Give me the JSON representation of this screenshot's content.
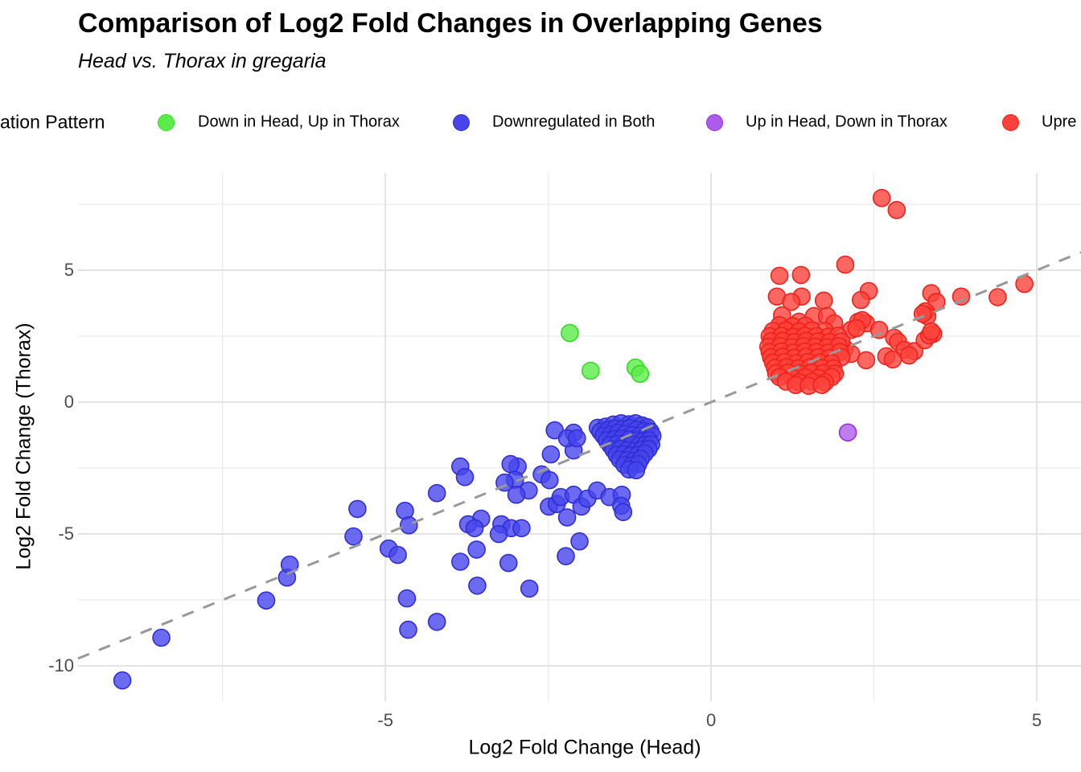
{
  "title": "Comparison of Log2 Fold Changes in Overlapping Genes",
  "subtitle": "Head vs. Thorax in gregaria",
  "legend": {
    "title": "ation Pattern",
    "items": [
      {
        "label": "Down in Head, Up in Thorax",
        "fill": "#5BEB4A",
        "stroke": "#34DC21"
      },
      {
        "label": "Downregulated in Both",
        "fill": "#4645EC",
        "stroke": "#2F2FD4"
      },
      {
        "label": "Up in Head, Down in Thorax",
        "fill": "#AE5BEB",
        "stroke": "#9432DA"
      },
      {
        "label": "Upre",
        "fill": "#FA423B",
        "stroke": "#F2201B"
      }
    ]
  },
  "axes": {
    "x": {
      "title": "Log2 Fold Change (Head)"
    },
    "y": {
      "title": "Log2 Fold Change (Thorax)"
    }
  },
  "colors": {
    "grid_major": "#E3E3E3",
    "grid_minor": "#EDEDED",
    "identity_line": "#999999",
    "tick_text": "#4d4d4d"
  },
  "chart_data": {
    "type": "scatter",
    "title": "Comparison of Log2 Fold Changes in Overlapping Genes",
    "subtitle": "Head vs. Thorax in gregaria",
    "xlabel": "Log2 Fold Change (Head)",
    "ylabel": "Log2 Fold Change (Thorax)",
    "xlim": [
      -9.72,
      5.68
    ],
    "ylim": [
      -11.34,
      8.69
    ],
    "x_major_ticks": [
      -5,
      0,
      5
    ],
    "x_minor_ticks": [
      -7.5,
      -2.5,
      2.5
    ],
    "y_major_ticks": [
      5,
      0,
      -5,
      -10
    ],
    "y_minor_ticks": [
      7.5,
      2.5,
      -2.5,
      -7.5
    ],
    "grid": true,
    "legend_position": "top",
    "identity_line": {
      "style": "dashed",
      "from": [
        -9.72,
        -9.72
      ],
      "to": [
        5.68,
        5.68
      ]
    },
    "series": [
      {
        "name": "Down in Head, Up in Thorax",
        "fill": "#5BEB4A",
        "stroke": "#34DC21",
        "points": [
          [
            -2.17,
            2.62
          ],
          [
            -1.85,
            1.19
          ],
          [
            -1.16,
            1.31
          ],
          [
            -1.09,
            1.07
          ]
        ]
      },
      {
        "name": "Downregulated in Both",
        "fill": "#4645EC",
        "stroke": "#2F2FD4",
        "points": [
          [
            -9.04,
            -10.55
          ],
          [
            -8.44,
            -8.93
          ],
          [
            -6.83,
            -7.52
          ],
          [
            -6.51,
            -6.65
          ],
          [
            -6.47,
            -6.16
          ],
          [
            -5.49,
            -5.09
          ],
          [
            -5.43,
            -4.05
          ],
          [
            -4.95,
            -5.55
          ],
          [
            -4.81,
            -5.79
          ],
          [
            -4.7,
            -4.12
          ],
          [
            -4.64,
            -4.67
          ],
          [
            -4.67,
            -7.44
          ],
          [
            -4.65,
            -8.63
          ],
          [
            -4.21,
            -8.33
          ],
          [
            -4.21,
            -3.45
          ],
          [
            -3.85,
            -2.44
          ],
          [
            -3.78,
            -2.84
          ],
          [
            -3.6,
            -5.59
          ],
          [
            -3.85,
            -6.05
          ],
          [
            -3.59,
            -6.96
          ],
          [
            -3.11,
            -6.1
          ],
          [
            -2.79,
            -7.07
          ],
          [
            -2.23,
            -5.84
          ],
          [
            -2.02,
            -5.28
          ],
          [
            -3.53,
            -4.42
          ],
          [
            -3.73,
            -4.63
          ],
          [
            -3.63,
            -4.78
          ],
          [
            -3.22,
            -4.63
          ],
          [
            -3.07,
            -4.78
          ],
          [
            -2.91,
            -4.78
          ],
          [
            -3.26,
            -5.0
          ],
          [
            -2.97,
            -2.44
          ],
          [
            -3.08,
            -2.35
          ],
          [
            -3.01,
            -2.95
          ],
          [
            -3.17,
            -3.05
          ],
          [
            -2.8,
            -3.35
          ],
          [
            -2.99,
            -3.51
          ],
          [
            -2.6,
            -2.74
          ],
          [
            -2.48,
            -2.96
          ],
          [
            -2.49,
            -3.96
          ],
          [
            -2.37,
            -3.86
          ],
          [
            -2.31,
            -3.6
          ],
          [
            -2.21,
            -4.37
          ],
          [
            -2.11,
            -3.51
          ],
          [
            -1.99,
            -3.96
          ],
          [
            -1.9,
            -3.66
          ],
          [
            -1.75,
            -3.35
          ],
          [
            -1.56,
            -3.6
          ],
          [
            -1.37,
            -3.51
          ],
          [
            -1.38,
            -3.93
          ],
          [
            -1.35,
            -4.17
          ],
          [
            -2.46,
            -1.98
          ],
          [
            -2.4,
            -1.07
          ],
          [
            -2.11,
            -1.16
          ],
          [
            -2.11,
            -1.83
          ],
          [
            -2.21,
            -1.37
          ],
          [
            -2.06,
            -1.37
          ],
          [
            -1.74,
            -0.97
          ],
          [
            -1.62,
            -0.93
          ],
          [
            -1.5,
            -0.85
          ],
          [
            -1.38,
            -0.8
          ],
          [
            -1.26,
            -0.84
          ],
          [
            -1.16,
            -0.8
          ],
          [
            -1.06,
            -0.88
          ],
          [
            -0.98,
            -0.95
          ],
          [
            -1.7,
            -1.12
          ],
          [
            -1.58,
            -1.05
          ],
          [
            -1.47,
            -1.0
          ],
          [
            -1.36,
            -1.02
          ],
          [
            -1.25,
            -0.98
          ],
          [
            -1.14,
            -1.05
          ],
          [
            -1.03,
            -1.1
          ],
          [
            -0.93,
            -1.12
          ],
          [
            -1.65,
            -1.28
          ],
          [
            -1.54,
            -1.22
          ],
          [
            -1.43,
            -1.18
          ],
          [
            -1.32,
            -1.2
          ],
          [
            -1.21,
            -1.25
          ],
          [
            -1.1,
            -1.28
          ],
          [
            -1.0,
            -1.3
          ],
          [
            -0.9,
            -1.28
          ],
          [
            -1.6,
            -1.45
          ],
          [
            -1.48,
            -1.4
          ],
          [
            -1.37,
            -1.38
          ],
          [
            -1.26,
            -1.42
          ],
          [
            -1.15,
            -1.45
          ],
          [
            -1.05,
            -1.48
          ],
          [
            -0.95,
            -1.45
          ],
          [
            -1.55,
            -1.62
          ],
          [
            -1.44,
            -1.58
          ],
          [
            -1.33,
            -1.6
          ],
          [
            -1.22,
            -1.62
          ],
          [
            -1.11,
            -1.65
          ],
          [
            -1.01,
            -1.62
          ],
          [
            -0.92,
            -1.6
          ],
          [
            -1.5,
            -1.8
          ],
          [
            -1.39,
            -1.78
          ],
          [
            -1.28,
            -1.82
          ],
          [
            -1.17,
            -1.85
          ],
          [
            -1.06,
            -1.8
          ],
          [
            -0.96,
            -1.78
          ],
          [
            -1.45,
            -2.0
          ],
          [
            -1.34,
            -1.98
          ],
          [
            -1.23,
            -2.02
          ],
          [
            -1.12,
            -2.0
          ],
          [
            -1.02,
            -1.95
          ],
          [
            -1.4,
            -2.18
          ],
          [
            -1.29,
            -2.2
          ],
          [
            -1.18,
            -2.22
          ],
          [
            -1.08,
            -2.15
          ],
          [
            -1.33,
            -2.38
          ],
          [
            -1.22,
            -2.4
          ],
          [
            -1.12,
            -2.35
          ],
          [
            -1.26,
            -2.55
          ],
          [
            -1.15,
            -2.58
          ]
        ]
      },
      {
        "name": "Up in Head, Down in Thorax",
        "fill": "#AE5BEB",
        "stroke": "#9432DA",
        "points": [
          [
            2.1,
            -1.15
          ]
        ]
      },
      {
        "name": "Upre",
        "fill": "#FA423B",
        "stroke": "#F2201B",
        "points": [
          [
            2.62,
            7.74
          ],
          [
            2.85,
            7.28
          ],
          [
            2.06,
            5.21
          ],
          [
            1.05,
            4.79
          ],
          [
            1.38,
            4.82
          ],
          [
            4.81,
            4.48
          ],
          [
            2.42,
            4.21
          ],
          [
            1.01,
            4.0
          ],
          [
            1.39,
            4.0
          ],
          [
            3.38,
            4.13
          ],
          [
            4.4,
            3.98
          ],
          [
            3.84,
            4.0
          ],
          [
            1.23,
            3.8
          ],
          [
            1.73,
            3.85
          ],
          [
            2.3,
            3.87
          ],
          [
            3.46,
            3.8
          ],
          [
            3.29,
            3.44
          ],
          [
            1.09,
            3.29
          ],
          [
            1.35,
            3.05
          ],
          [
            1.58,
            3.26
          ],
          [
            1.78,
            3.26
          ],
          [
            1.89,
            2.99
          ],
          [
            1.15,
            2.74
          ],
          [
            2.26,
            3.05
          ],
          [
            2.38,
            2.99
          ],
          [
            2.15,
            2.74
          ],
          [
            2.58,
            2.74
          ],
          [
            3.32,
            3.26
          ],
          [
            3.25,
            3.35
          ],
          [
            2.32,
            3.11
          ],
          [
            2.23,
            2.8
          ],
          [
            2.05,
            2.04
          ],
          [
            2.15,
            1.83
          ],
          [
            2.38,
            1.59
          ],
          [
            2.81,
            2.44
          ],
          [
            2.87,
            2.29
          ],
          [
            2.97,
            1.98
          ],
          [
            3.12,
            1.93
          ],
          [
            2.69,
            1.74
          ],
          [
            2.79,
            1.62
          ],
          [
            3.04,
            1.77
          ],
          [
            3.41,
            2.59
          ],
          [
            3.28,
            2.35
          ],
          [
            3.35,
            2.53
          ],
          [
            3.38,
            2.68
          ],
          [
            1.05,
            2.92
          ],
          [
            1.25,
            2.88
          ],
          [
            1.45,
            2.9
          ],
          [
            0.95,
            2.7
          ],
          [
            1.15,
            2.72
          ],
          [
            1.35,
            2.68
          ],
          [
            1.55,
            2.72
          ],
          [
            1.75,
            2.7
          ],
          [
            0.9,
            2.5
          ],
          [
            1.08,
            2.52
          ],
          [
            1.26,
            2.48
          ],
          [
            1.44,
            2.52
          ],
          [
            1.62,
            2.5
          ],
          [
            1.8,
            2.48
          ],
          [
            1.95,
            2.52
          ],
          [
            0.92,
            2.3
          ],
          [
            1.1,
            2.32
          ],
          [
            1.28,
            2.28
          ],
          [
            1.46,
            2.32
          ],
          [
            1.64,
            2.3
          ],
          [
            1.82,
            2.28
          ],
          [
            2.0,
            2.3
          ],
          [
            0.88,
            2.1
          ],
          [
            1.06,
            2.12
          ],
          [
            1.24,
            2.08
          ],
          [
            1.42,
            2.12
          ],
          [
            1.6,
            2.1
          ],
          [
            1.78,
            2.08
          ],
          [
            1.96,
            2.12
          ],
          [
            0.9,
            1.9
          ],
          [
            1.08,
            1.92
          ],
          [
            1.26,
            1.88
          ],
          [
            1.44,
            1.92
          ],
          [
            1.62,
            1.9
          ],
          [
            1.8,
            1.88
          ],
          [
            1.98,
            1.9
          ],
          [
            0.92,
            1.7
          ],
          [
            1.1,
            1.72
          ],
          [
            1.28,
            1.68
          ],
          [
            1.46,
            1.72
          ],
          [
            1.64,
            1.7
          ],
          [
            1.82,
            1.68
          ],
          [
            2.0,
            1.7
          ],
          [
            0.95,
            1.5
          ],
          [
            1.13,
            1.52
          ],
          [
            1.31,
            1.48
          ],
          [
            1.49,
            1.52
          ],
          [
            1.67,
            1.5
          ],
          [
            1.85,
            1.48
          ],
          [
            0.98,
            1.3
          ],
          [
            1.16,
            1.32
          ],
          [
            1.34,
            1.28
          ],
          [
            1.52,
            1.32
          ],
          [
            1.7,
            1.3
          ],
          [
            1.88,
            1.28
          ],
          [
            1.0,
            1.1
          ],
          [
            1.18,
            1.12
          ],
          [
            1.36,
            1.08
          ],
          [
            1.54,
            1.12
          ],
          [
            1.72,
            1.1
          ],
          [
            1.9,
            1.08
          ],
          [
            1.05,
            0.95
          ],
          [
            1.25,
            0.92
          ],
          [
            1.45,
            0.95
          ],
          [
            1.65,
            0.92
          ],
          [
            1.85,
            0.95
          ],
          [
            1.15,
            0.78
          ],
          [
            1.35,
            0.75
          ],
          [
            1.55,
            0.78
          ],
          [
            1.75,
            0.75
          ],
          [
            1.3,
            0.65
          ],
          [
            1.5,
            0.62
          ],
          [
            1.7,
            0.65
          ]
        ]
      }
    ]
  },
  "x_tick_labels": [
    {
      "value": -5,
      "label": "-5"
    },
    {
      "value": 0,
      "label": "0"
    },
    {
      "value": 5,
      "label": "5"
    }
  ],
  "y_tick_labels": [
    {
      "value": 5,
      "label": "5"
    },
    {
      "value": 0,
      "label": "0"
    },
    {
      "value": -5,
      "label": "-5"
    },
    {
      "value": -10,
      "label": "-10"
    }
  ]
}
